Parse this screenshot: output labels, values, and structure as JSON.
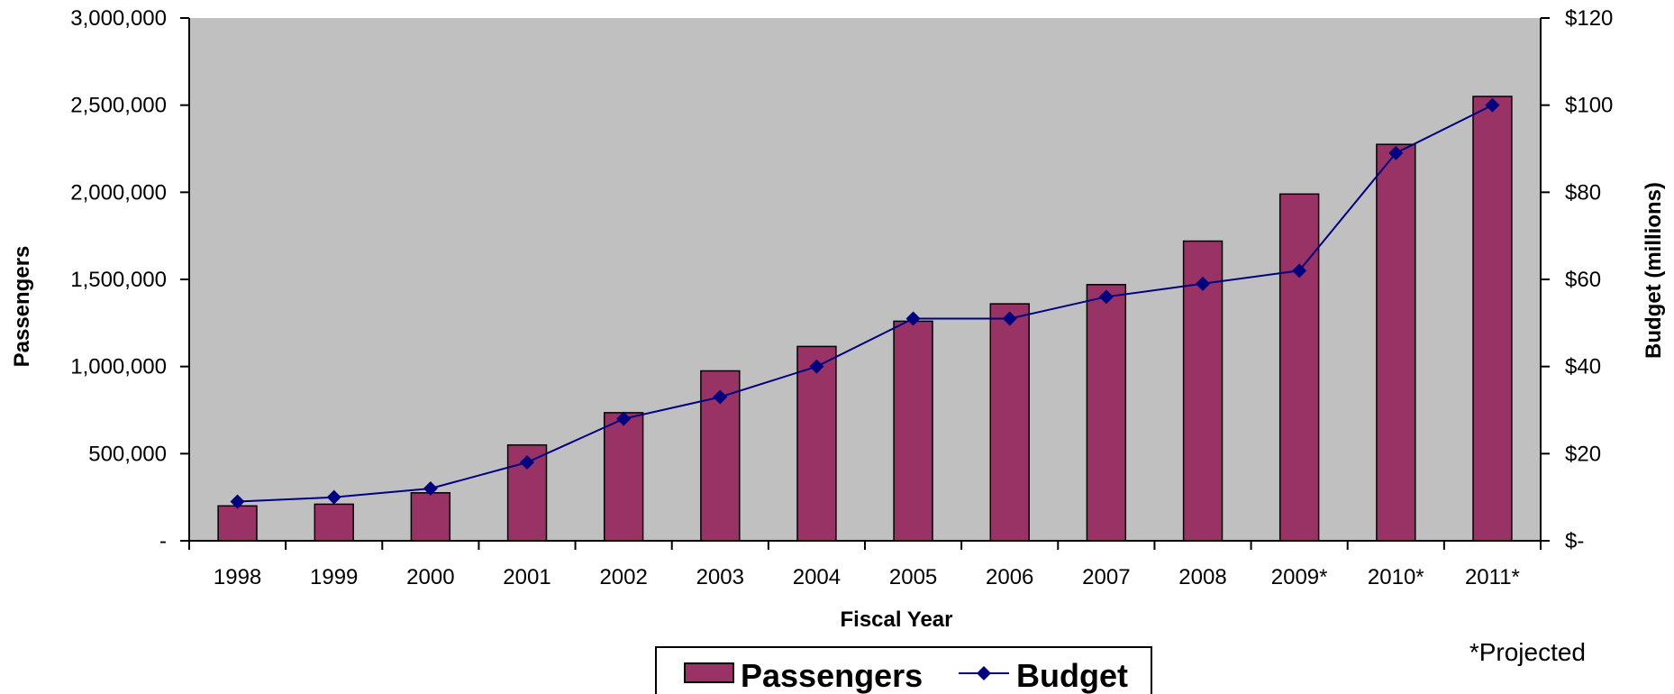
{
  "chart_data": {
    "type": "bar",
    "categories": [
      "1998",
      "1999",
      "2000",
      "2001",
      "2002",
      "2003",
      "2004",
      "2005",
      "2006",
      "2007",
      "2008",
      "2009*",
      "2010*",
      "2011*"
    ],
    "series": [
      {
        "name": "Passengers",
        "type": "bar",
        "axis": "left",
        "values": [
          200000,
          210000,
          275000,
          550000,
          735000,
          975000,
          1115000,
          1260000,
          1360000,
          1470000,
          1720000,
          1990000,
          2275000,
          2550000
        ]
      },
      {
        "name": "Budget",
        "type": "line",
        "axis": "right",
        "values": [
          9,
          10,
          12,
          18,
          28,
          33,
          40,
          51,
          51,
          56,
          59,
          62,
          89,
          100
        ]
      }
    ],
    "xlabel": "Fiscal Year",
    "ylabel": "Passengers",
    "y2label": "Budget (millions)",
    "ylim": [
      0,
      3000000
    ],
    "y2lim": [
      0,
      120
    ],
    "yticks": [
      "-",
      "500,000",
      "1,000,000",
      "1,500,000",
      "2,000,000",
      "2,500,000",
      "3,000,000"
    ],
    "y2ticks": [
      "$-",
      "$20",
      "$40",
      "$60",
      "$80",
      "$100",
      "$120"
    ],
    "note": "*Projected",
    "legend_position": "bottom",
    "colors": {
      "plot_bg": "#C0C0C0",
      "bar": "#993366",
      "line": "#000080"
    }
  }
}
